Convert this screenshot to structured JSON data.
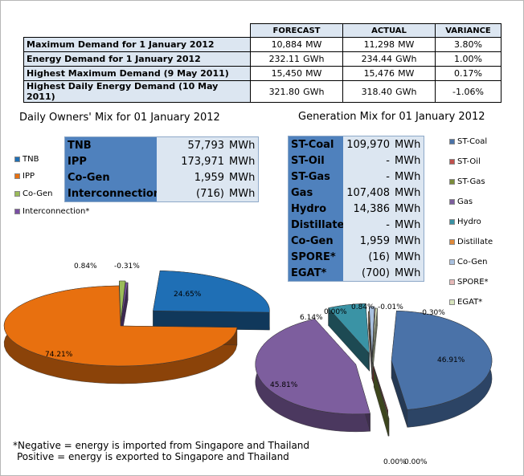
{
  "summary": {
    "headers": [
      "",
      "FORECAST",
      "ACTUAL",
      "VARIANCE"
    ],
    "rows": [
      {
        "label": "Maximum Demand for 1 January 2012",
        "forecast": "10,884",
        "forecast_unit": "MW",
        "actual": "11,298",
        "actual_unit": "MW",
        "variance": "3.80%"
      },
      {
        "label": "Energy Demand for 1 January 2012",
        "forecast": "232.11",
        "forecast_unit": "GWh",
        "actual": "234.44",
        "actual_unit": "GWh",
        "variance": "1.00%"
      },
      {
        "label": "Highest Maximum Demand (9 May 2011)",
        "forecast": "15,450",
        "forecast_unit": "MW",
        "actual": "15,476",
        "actual_unit": "MW",
        "variance": "0.17%"
      },
      {
        "label": "Highest Daily Energy Demand (10 May 2011)",
        "forecast": "321.80",
        "forecast_unit": "GWh",
        "actual": "318.40",
        "actual_unit": "GWh",
        "variance": "-1.06%"
      }
    ]
  },
  "owners": {
    "title": "Daily Owners' Mix for 01 January 2012",
    "rows": [
      {
        "name": "TNB",
        "value": "57,793",
        "unit": "MWh"
      },
      {
        "name": "IPP",
        "value": "173,971",
        "unit": "MWh"
      },
      {
        "name": "Co-Gen",
        "value": "1,959",
        "unit": "MWh"
      },
      {
        "name": "Interconnection*",
        "value": "(716)",
        "unit": "MWh"
      }
    ]
  },
  "generation": {
    "title": "Generation Mix for 01 January 2012",
    "rows": [
      {
        "name": "ST-Coal",
        "value": "109,970",
        "unit": "MWh"
      },
      {
        "name": "ST-Oil",
        "value": "-",
        "unit": "MWh"
      },
      {
        "name": "ST-Gas",
        "value": "-",
        "unit": "MWh"
      },
      {
        "name": "Gas",
        "value": "107,408",
        "unit": "MWh"
      },
      {
        "name": "Hydro",
        "value": "14,386",
        "unit": "MWh"
      },
      {
        "name": "Distillate",
        "value": "-",
        "unit": "MWh"
      },
      {
        "name": "Co-Gen",
        "value": "1,959",
        "unit": "MWh"
      },
      {
        "name": "SPORE*",
        "value": "(16)",
        "unit": "MWh"
      },
      {
        "name": "EGAT*",
        "value": "(700)",
        "unit": "MWh"
      }
    ]
  },
  "footnote": {
    "line1": "*Negative = energy is imported from Singapore and Thailand",
    "line2": "Positive = energy is exported to Singapore and Thailand"
  },
  "chart_data": [
    {
      "type": "pie",
      "title": "Daily Owners' Mix for 01 January 2012",
      "series": [
        {
          "name": "TNB",
          "value": 24.65,
          "label": "24.65%",
          "color": "#1f6fb5"
        },
        {
          "name": "IPP",
          "value": 74.21,
          "label": "74.21%",
          "color": "#e8700f"
        },
        {
          "name": "Co-Gen",
          "value": 0.84,
          "label": "0.84%",
          "color": "#9bbb59"
        },
        {
          "name": "Interconnection*",
          "value": -0.31,
          "label": "-0.31%",
          "color": "#7a4fa3"
        }
      ],
      "legend": "left"
    },
    {
      "type": "pie",
      "title": "Generation Mix for 01 January 2012",
      "series": [
        {
          "name": "ST-Coal",
          "value": 46.91,
          "label": "46.91%",
          "color": "#4a72a8"
        },
        {
          "name": "ST-Oil",
          "value": 0.0,
          "label": "0.00%",
          "color": "#c0504d"
        },
        {
          "name": "ST-Gas",
          "value": 0.0,
          "label": "0.00%",
          "color": "#7a8c3a"
        },
        {
          "name": "Gas",
          "value": 45.81,
          "label": "45.81%",
          "color": "#7d5e9e"
        },
        {
          "name": "Hydro",
          "value": 6.14,
          "label": "6.14%",
          "color": "#3a93a5"
        },
        {
          "name": "Distillate",
          "value": 0.0,
          "label": "0.00%",
          "color": "#e08a3a"
        },
        {
          "name": "Co-Gen",
          "value": 0.84,
          "label": "0.84%",
          "color": "#a9c1e0"
        },
        {
          "name": "SPORE*",
          "value": -0.01,
          "label": "-0.01%",
          "color": "#e6b9b8"
        },
        {
          "name": "EGAT*",
          "value": -0.3,
          "label": "-0.30%",
          "color": "#d7e4bd"
        }
      ],
      "legend": "right"
    }
  ]
}
